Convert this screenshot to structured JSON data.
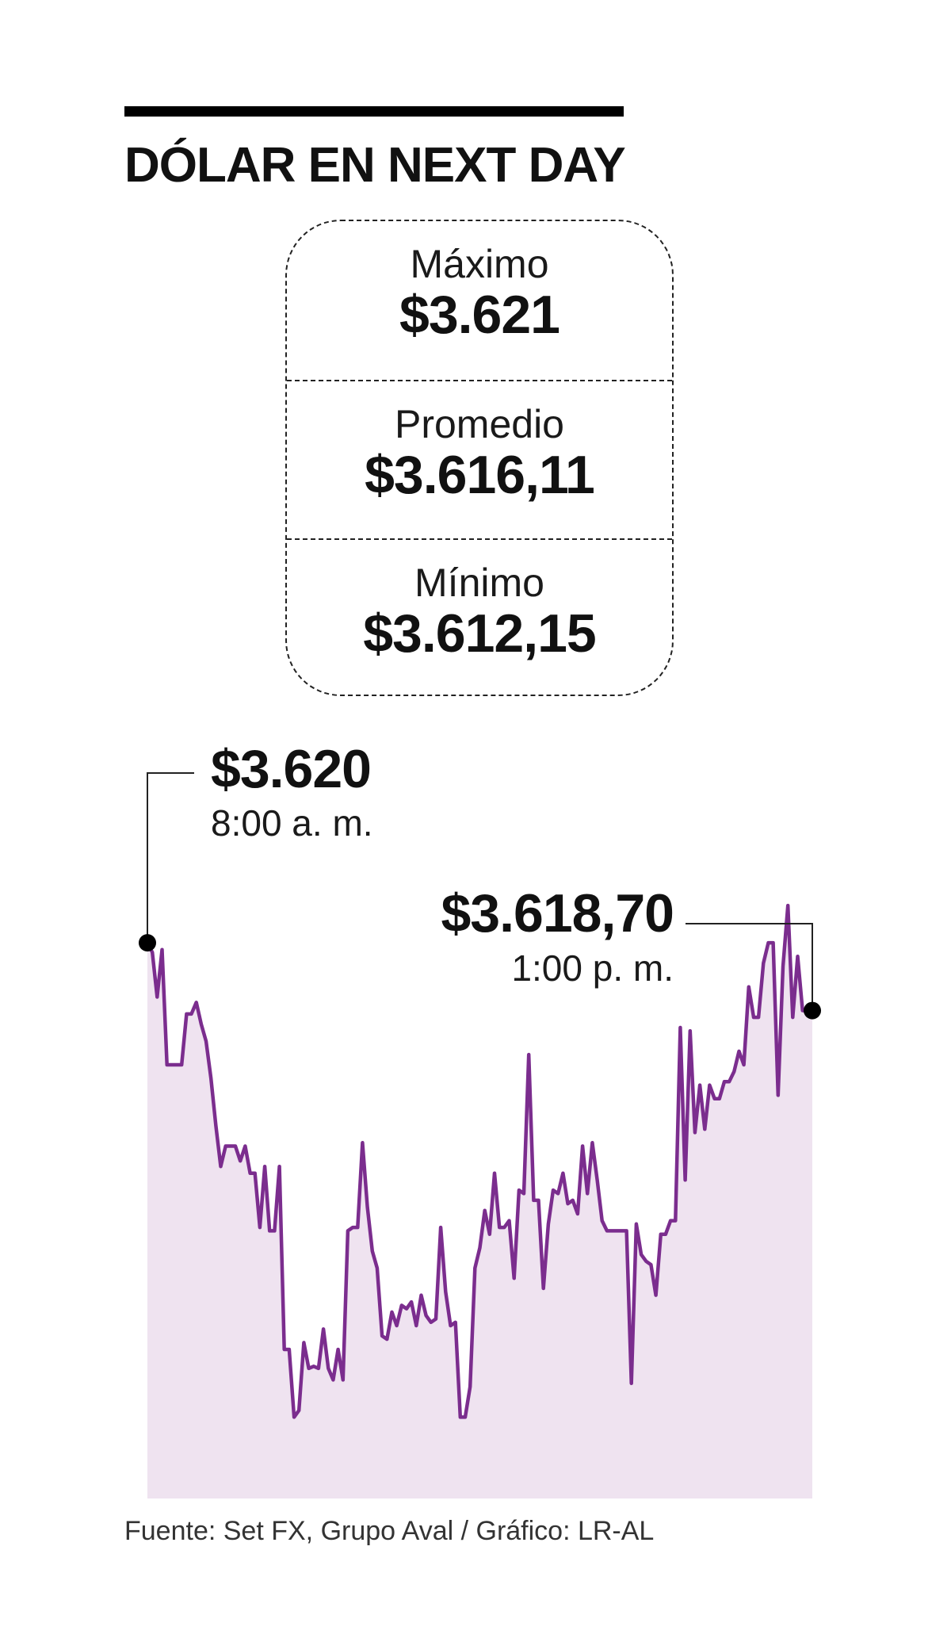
{
  "title": "DÓLAR EN NEXT DAY",
  "stats": {
    "max_label": "Máximo",
    "max_value": "$3.621",
    "avg_label": "Promedio",
    "avg_value": "$3.616,11",
    "min_label": "Mínimo",
    "min_value": "$3.612,15"
  },
  "callouts": {
    "open_value": "$3.620",
    "open_time": "8:00 a. m.",
    "close_value": "$3.618,70",
    "close_time": "1:00 p. m."
  },
  "source": "Fuente: Set FX, Grupo Aval / Gráfico: LR-AL",
  "colors": {
    "line": "#7b2d8e",
    "area": "#efe3f0",
    "marker": "#000000"
  },
  "chart_data": {
    "type": "area",
    "ylim": [
      3611.8,
      3621.3
    ],
    "y": [
      3620.0,
      3619.86,
      3619.2,
      3619.9,
      3618.2,
      3618.2,
      3618.2,
      3618.2,
      3618.95,
      3618.95,
      3619.12,
      3618.8,
      3618.55,
      3618.0,
      3617.3,
      3616.7,
      3617.0,
      3617.0,
      3617.0,
      3616.78,
      3617.0,
      3616.6,
      3616.6,
      3615.8,
      3616.7,
      3615.75,
      3615.75,
      3616.7,
      3614.0,
      3614.0,
      3613.0,
      3613.1,
      3614.1,
      3613.72,
      3613.75,
      3613.72,
      3614.3,
      3613.72,
      3613.55,
      3614.0,
      3613.55,
      3615.75,
      3615.8,
      3615.8,
      3617.05,
      3616.1,
      3615.45,
      3615.2,
      3614.2,
      3614.15,
      3614.55,
      3614.35,
      3614.65,
      3614.6,
      3614.7,
      3614.35,
      3614.8,
      3614.5,
      3614.4,
      3614.45,
      3615.8,
      3614.85,
      3614.35,
      3614.4,
      3613.0,
      3613.0,
      3613.45,
      3615.2,
      3615.5,
      3616.05,
      3615.7,
      3616.6,
      3615.8,
      3615.8,
      3615.9,
      3615.05,
      3616.35,
      3616.3,
      3618.35,
      3616.2,
      3616.2,
      3614.9,
      3615.85,
      3616.35,
      3616.3,
      3616.6,
      3616.15,
      3616.2,
      3616.0,
      3617.0,
      3616.3,
      3617.05,
      3616.5,
      3615.9,
      3615.75,
      3615.75,
      3615.75,
      3615.75,
      3615.75,
      3613.5,
      3615.85,
      3615.4,
      3615.3,
      3615.25,
      3614.8,
      3615.7,
      3615.7,
      3615.9,
      3615.9,
      3618.75,
      3616.5,
      3618.7,
      3617.2,
      3617.9,
      3617.25,
      3617.9,
      3617.7,
      3617.7,
      3617.95,
      3617.95,
      3618.1,
      3618.4,
      3618.2,
      3619.35,
      3618.9,
      3618.9,
      3619.7,
      3620.0,
      3620.0,
      3617.75,
      3619.65,
      3620.55,
      3618.9,
      3619.8,
      3619.0,
      3619.0,
      3619.0
    ]
  }
}
